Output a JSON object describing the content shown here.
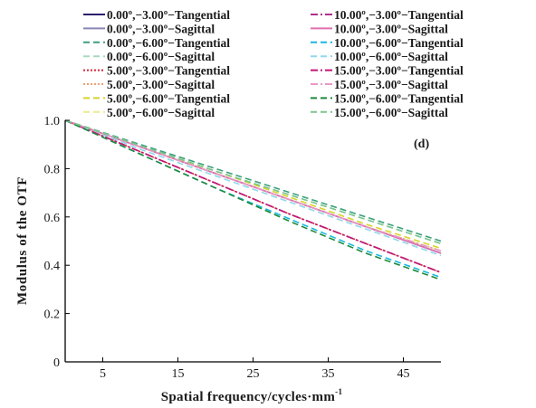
{
  "chart_data": {
    "type": "line",
    "panel_label": "(d)",
    "xlabel_main": "Spatial frequency/cycles·mm",
    "xlabel_sup": "-1",
    "ylabel": "Modulus of the OTF",
    "xlim": [
      0,
      50
    ],
    "ylim": [
      0,
      1.0
    ],
    "x_ticks": [
      5,
      15,
      25,
      35,
      45
    ],
    "x_tick_labels": [
      "5",
      "15",
      "25",
      "35",
      "45"
    ],
    "y_ticks": [
      0,
      0.2,
      0.4,
      0.6,
      0.8,
      1.0
    ],
    "y_tick_labels": [
      "0",
      "0.2",
      "0.4",
      "0.6",
      "0.8",
      "1.0"
    ],
    "grid": false,
    "legend_position": "top",
    "x": [
      0,
      10,
      20,
      30,
      40,
      50
    ],
    "series": [
      {
        "name": "0.00º,−3.00º−Tangential",
        "color": "#2a1f6e",
        "dash": "solid",
        "values": [
          1.0,
          0.89,
          0.78,
          0.67,
          0.56,
          0.45
        ]
      },
      {
        "name": "0.00º,−3.00º−Sagittal",
        "color": "#8a86b8",
        "dash": "solid",
        "values": [
          1.0,
          0.89,
          0.78,
          0.67,
          0.56,
          0.45
        ]
      },
      {
        "name": "0.00º,−6.00º−Tangential",
        "color": "#3aa07a",
        "dash": "dashed",
        "values": [
          1.0,
          0.9,
          0.8,
          0.7,
          0.6,
          0.5
        ]
      },
      {
        "name": "0.00º,−6.00º−Sagittal",
        "color": "#a8d8bf",
        "dash": "dashed",
        "values": [
          1.0,
          0.895,
          0.79,
          0.69,
          0.59,
          0.49
        ]
      },
      {
        "name": "5.00º,−3.00º−Tangential",
        "color": "#d8263a",
        "dash": "dotted",
        "values": [
          1.0,
          0.87,
          0.74,
          0.61,
          0.49,
          0.37
        ]
      },
      {
        "name": "5.00º,−3.00º−Sagittal",
        "color": "#f0a070",
        "dash": "dotted",
        "values": [
          1.0,
          0.89,
          0.78,
          0.67,
          0.56,
          0.46
        ]
      },
      {
        "name": "5.00º,−6.00º−Tangential",
        "color": "#d6d428",
        "dash": "dashed",
        "values": [
          1.0,
          0.89,
          0.79,
          0.68,
          0.57,
          0.47
        ]
      },
      {
        "name": "5.00º,−6.00º−Sagittal",
        "color": "#eaea90",
        "dash": "dashed",
        "values": [
          1.0,
          0.89,
          0.78,
          0.67,
          0.56,
          0.46
        ]
      },
      {
        "name": "10.00º,−3.00º−Tangential",
        "color": "#b0308a",
        "dash": "dashdot",
        "values": [
          1.0,
          0.87,
          0.74,
          0.61,
          0.49,
          0.37
        ]
      },
      {
        "name": "10.00º,−3.00º−Sagittal",
        "color": "#e070b0",
        "dash": "solid",
        "values": [
          1.0,
          0.89,
          0.78,
          0.67,
          0.56,
          0.45
        ]
      },
      {
        "name": "10.00º,−6.00º−Tangential",
        "color": "#18b8e0",
        "dash": "dashed",
        "values": [
          1.0,
          0.86,
          0.72,
          0.59,
          0.46,
          0.35
        ]
      },
      {
        "name": "10.00º,−6.00º−Sagittal",
        "color": "#90d8ec",
        "dash": "dashed",
        "values": [
          1.0,
          0.88,
          0.77,
          0.66,
          0.55,
          0.44
        ]
      },
      {
        "name": "15.00º,−3.00º−Tangential",
        "color": "#c01878",
        "dash": "dashdot",
        "values": [
          1.0,
          0.87,
          0.74,
          0.61,
          0.49,
          0.37
        ]
      },
      {
        "name": "15.00º,−3.00º−Sagittal",
        "color": "#e898c8",
        "dash": "dashdot",
        "values": [
          1.0,
          0.89,
          0.78,
          0.67,
          0.56,
          0.46
        ]
      },
      {
        "name": "15.00º,−6.00º−Tangential",
        "color": "#1e8a3a",
        "dash": "dashed",
        "values": [
          1.0,
          0.86,
          0.72,
          0.58,
          0.45,
          0.34
        ]
      },
      {
        "name": "15.00º,−6.00º−Sagittal",
        "color": "#7cc48e",
        "dash": "dashed",
        "values": [
          1.0,
          0.895,
          0.79,
          0.69,
          0.59,
          0.49
        ]
      }
    ]
  }
}
